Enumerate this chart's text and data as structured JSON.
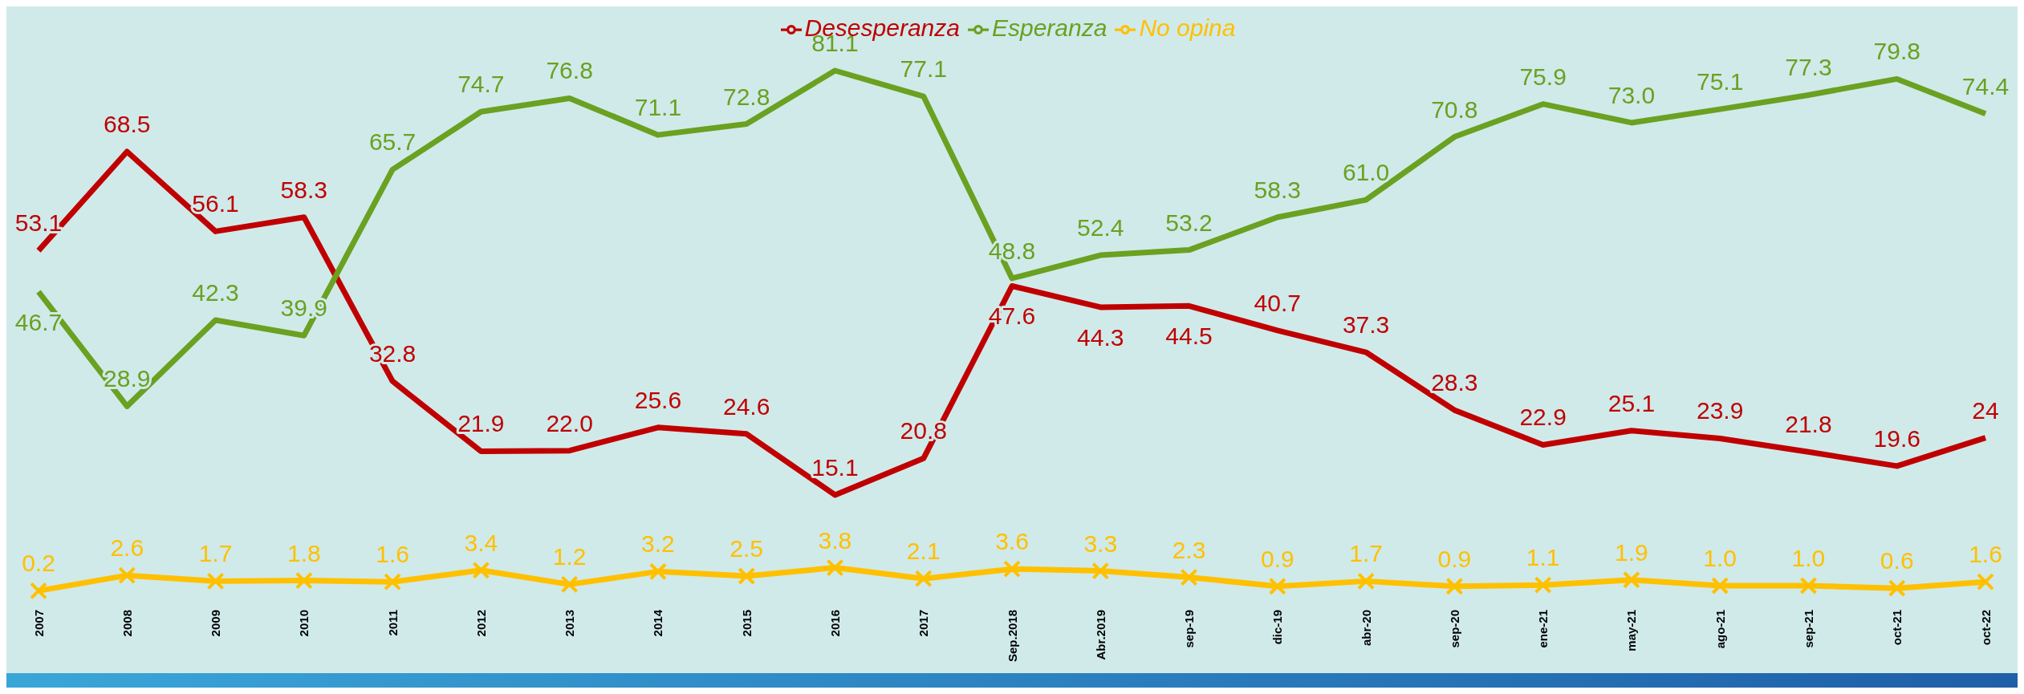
{
  "chart_data": {
    "type": "line",
    "categories": [
      "2007",
      "2008",
      "2009",
      "2010",
      "2011",
      "2012",
      "2013",
      "2014",
      "2015",
      "2016",
      "2017",
      "Sep.2018",
      "Abr.2019",
      "sep-19",
      "dic-19",
      "abr-20",
      "sep-20",
      "ene-21",
      "may-21",
      "ago-21",
      "sep-21",
      "oct-21",
      "oct-22"
    ],
    "series": [
      {
        "name": "Desesperanza",
        "color": "#c00000",
        "marker": "none",
        "values": [
          53.1,
          68.5,
          56.1,
          58.3,
          32.8,
          21.9,
          22.0,
          25.6,
          24.6,
          15.1,
          20.8,
          47.6,
          44.3,
          44.5,
          40.7,
          37.3,
          28.3,
          22.9,
          25.1,
          23.9,
          21.8,
          19.6,
          24
        ],
        "value_labels": [
          "53.1",
          "68.5",
          "56.1",
          "58.3",
          "32.8",
          "21.9",
          "22.0",
          "25.6",
          "24.6",
          "15.1",
          "20.8",
          "47.6",
          "44.3",
          "44.5",
          "40.7",
          "37.3",
          "28.3",
          "22.9",
          "25.1",
          "23.9",
          "21.8",
          "19.6",
          "24"
        ]
      },
      {
        "name": "Esperanza",
        "color": "#6aa121",
        "marker": "none",
        "values": [
          46.7,
          28.9,
          42.3,
          39.9,
          65.7,
          74.7,
          76.8,
          71.1,
          72.8,
          81.1,
          77.1,
          48.8,
          52.4,
          53.2,
          58.3,
          61.0,
          70.8,
          75.9,
          73.0,
          75.1,
          77.3,
          79.8,
          74.4
        ],
        "value_labels": [
          "46.7",
          "28.9",
          "42.3",
          "39.9",
          "65.7",
          "74.7",
          "76.8",
          "71.1",
          "72.8",
          "81.1",
          "77.1",
          "48.8",
          "52.4",
          "53.2",
          "58.3",
          "61.0",
          "70.8",
          "75.9",
          "73.0",
          "75.1",
          "77.3",
          "79.8",
          "74.4"
        ]
      },
      {
        "name": "No opina",
        "color": "#ffc000",
        "marker": "cross",
        "values": [
          0.2,
          2.6,
          1.7,
          1.8,
          1.6,
          3.4,
          1.2,
          3.2,
          2.5,
          3.8,
          2.1,
          3.6,
          3.3,
          2.3,
          0.9,
          1.7,
          0.9,
          1.1,
          1.9,
          1.0,
          1.0,
          0.6,
          1.6
        ],
        "value_labels": [
          "0.2",
          "2.6",
          "1.7",
          "1.8",
          "1.6",
          "3.4",
          "1.2",
          "3.2",
          "2.5",
          "3.8",
          "2.1",
          "3.6",
          "3.3",
          "2.3",
          "0.9",
          "1.7",
          "0.9",
          "1.1",
          "1.9",
          "1.0",
          "1.0",
          "0.6",
          "1.6"
        ]
      }
    ],
    "legend": "top",
    "grid": false
  }
}
